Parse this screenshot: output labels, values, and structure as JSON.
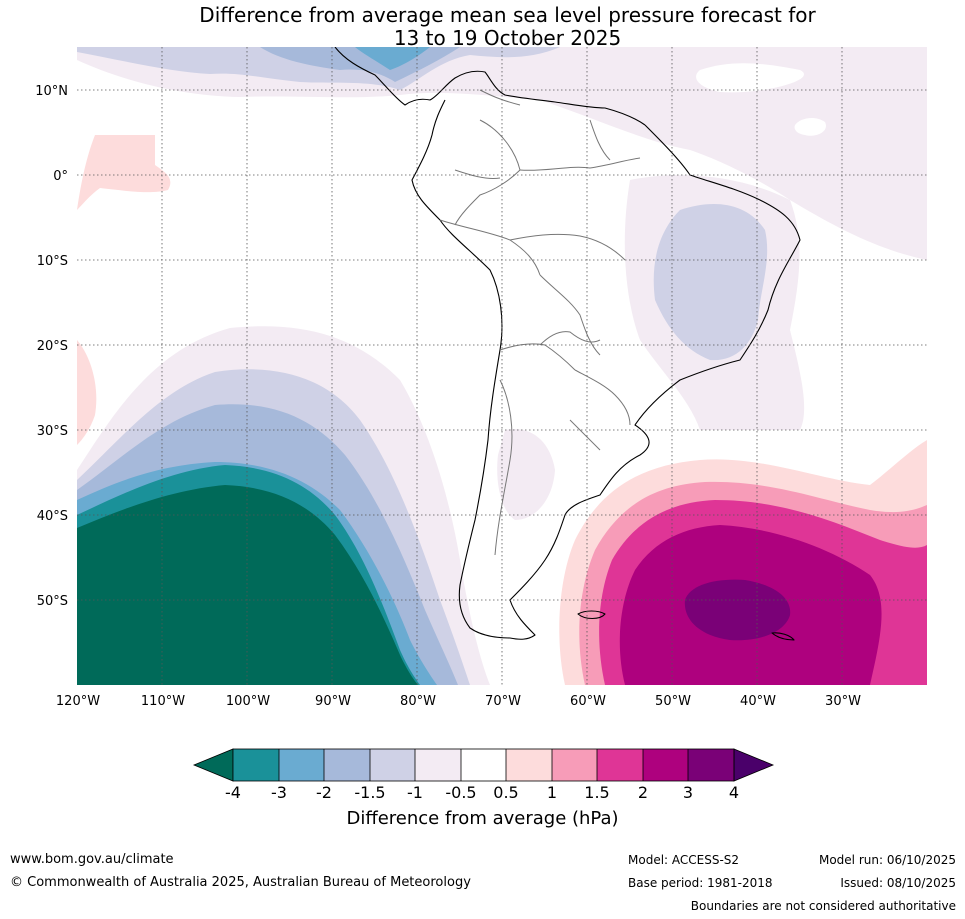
{
  "title": {
    "line1": "Difference from average mean sea level pressure forecast for",
    "line2": "13 to 19 October 2025"
  },
  "lat_labels": [
    "10°N",
    "0°",
    "10°S",
    "20°S",
    "30°S",
    "40°S",
    "50°S"
  ],
  "lon_labels": [
    "120°W",
    "110°W",
    "100°W",
    "90°W",
    "80°W",
    "70°W",
    "60°W",
    "50°W",
    "40°W",
    "30°W"
  ],
  "colorbar": {
    "title": "Difference from average (hPa)",
    "ticks": [
      "-4",
      "-3",
      "-2",
      "-1.5",
      "-1",
      "-0.5",
      "0.5",
      "1",
      "1.5",
      "2",
      "3",
      "4"
    ],
    "colors": [
      "#006a59",
      "#1a9199",
      "#6aabd1",
      "#a6b9da",
      "#cfd1e6",
      "#f3ebf3",
      "#ffffff",
      "#fddcdc",
      "#f79cb8",
      "#df3596",
      "#ae017e",
      "#7a0177",
      "#4a006a"
    ]
  },
  "footer": {
    "website": "www.bom.gov.au/climate",
    "copyright": "© Commonwealth of Australia 2025, Australian Bureau of Meteorology",
    "model": "Model: ACCESS-S2",
    "base_period": "Base period: 1981-2018",
    "model_run": "Model run: 06/10/2025",
    "issued": "Issued: 08/10/2025",
    "disclaimer": "Boundaries are not considered authoritative"
  }
}
